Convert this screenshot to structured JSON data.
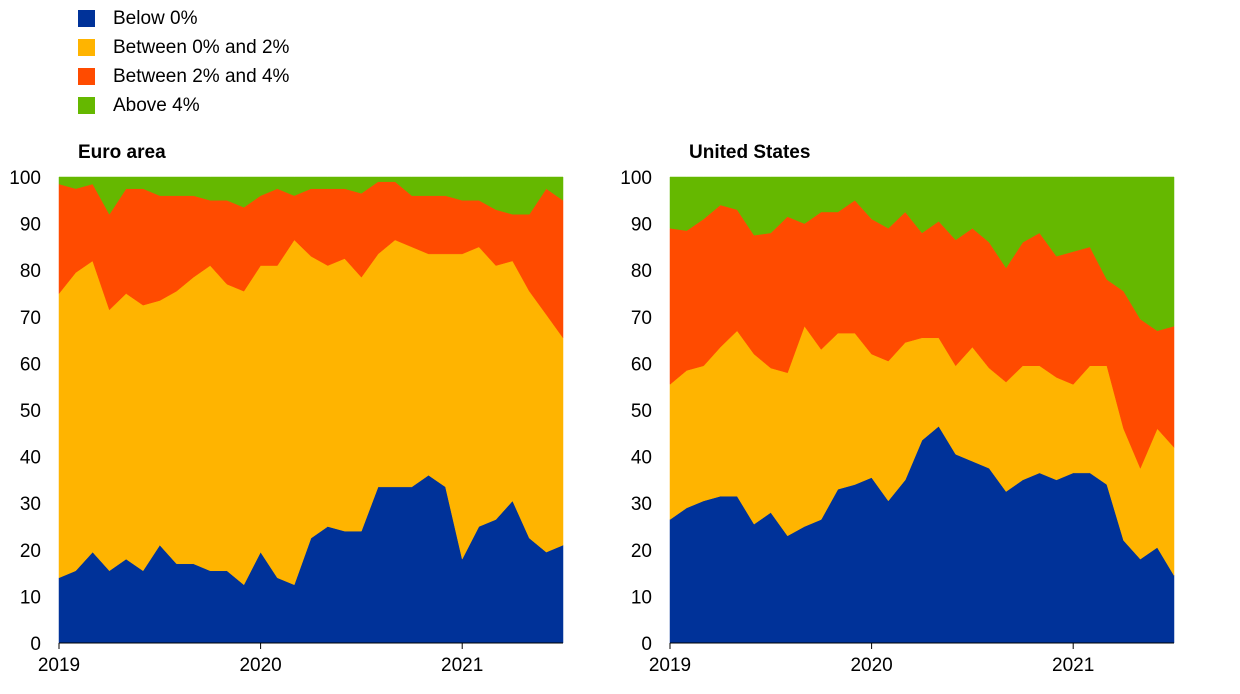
{
  "chart_data": [
    {
      "type": "area",
      "stacked": true,
      "title": "Euro area",
      "xlabel": "",
      "ylabel": "",
      "ylim": [
        0,
        100
      ],
      "yticks": [
        0,
        10,
        20,
        30,
        40,
        50,
        60,
        70,
        80,
        90,
        100
      ],
      "xlim": [
        2019,
        2021.5
      ],
      "xticks": [
        2019,
        2020,
        2021
      ],
      "x": [
        2019.0,
        2019.083,
        2019.167,
        2019.25,
        2019.333,
        2019.417,
        2019.5,
        2019.583,
        2019.667,
        2019.75,
        2019.833,
        2019.917,
        2020.0,
        2020.083,
        2020.167,
        2020.25,
        2020.333,
        2020.417,
        2020.5,
        2020.583,
        2020.667,
        2020.75,
        2020.833,
        2020.917,
        2021.0,
        2021.083,
        2021.167,
        2021.25,
        2021.333,
        2021.417,
        2021.5
      ],
      "series": [
        {
          "name": "Below 0%",
          "values": [
            14,
            15.5,
            19.5,
            15.5,
            18,
            15.5,
            21,
            17,
            17,
            15.5,
            15.5,
            12.5,
            19.5,
            14,
            12.5,
            22.5,
            25,
            24,
            24,
            33.5,
            33.5,
            33.5,
            36,
            33.5,
            18,
            25,
            26.5,
            30.5,
            22.5,
            19.5,
            21
          ]
        },
        {
          "name": "Between 0% and 2%",
          "values": [
            61,
            64,
            62.5,
            56,
            57,
            57,
            52.5,
            58.5,
            61.5,
            65.5,
            61.5,
            63,
            61.5,
            67,
            74,
            60.5,
            56,
            58.5,
            54.5,
            50,
            53,
            51.5,
            47.5,
            50,
            65.5,
            60,
            54.5,
            51.5,
            53,
            51,
            44.5
          ]
        },
        {
          "name": "Between 2% and 4%",
          "values": [
            23.5,
            18,
            16.5,
            20.5,
            22.5,
            25,
            22.5,
            20.5,
            17.5,
            14,
            18,
            18,
            15,
            16.5,
            9.5,
            14.5,
            16.5,
            15,
            18,
            15.5,
            12.5,
            11,
            12.5,
            12.5,
            11.5,
            10,
            12,
            10,
            16.5,
            27,
            29.5
          ]
        },
        {
          "name": "Above 4%",
          "values": [
            1.5,
            2.5,
            1.5,
            8,
            2.5,
            2.5,
            4,
            4,
            4,
            5,
            5,
            6.5,
            4,
            2.5,
            4,
            2.5,
            2.5,
            2.5,
            3.5,
            1,
            1,
            4,
            4,
            4,
            5,
            5,
            7,
            8,
            8,
            2.5,
            5
          ]
        }
      ]
    },
    {
      "type": "area",
      "stacked": true,
      "title": "United States",
      "xlabel": "",
      "ylabel": "",
      "ylim": [
        0,
        100
      ],
      "yticks": [
        0,
        10,
        20,
        30,
        40,
        50,
        60,
        70,
        80,
        90,
        100
      ],
      "xlim": [
        2019,
        2021.5
      ],
      "xticks": [
        2019,
        2020,
        2021
      ],
      "x": [
        2019.0,
        2019.083,
        2019.167,
        2019.25,
        2019.333,
        2019.417,
        2019.5,
        2019.583,
        2019.667,
        2019.75,
        2019.833,
        2019.917,
        2020.0,
        2020.083,
        2020.167,
        2020.25,
        2020.333,
        2020.417,
        2020.5,
        2020.583,
        2020.667,
        2020.75,
        2020.833,
        2020.917,
        2021.0,
        2021.083,
        2021.167,
        2021.25,
        2021.333,
        2021.417,
        2021.5
      ],
      "series": [
        {
          "name": "Below 0%",
          "values": [
            26.5,
            29,
            30.5,
            31.5,
            31.5,
            25.5,
            28,
            23,
            25,
            26.5,
            33,
            34,
            35.5,
            30.5,
            35,
            43.5,
            46.5,
            40.5,
            39,
            37.5,
            32.5,
            35,
            36.5,
            35,
            36.5,
            36.5,
            34,
            22,
            18,
            20.5,
            14.5
          ]
        },
        {
          "name": "Between 0% and 2%",
          "values": [
            29,
            29.5,
            29,
            32,
            35.5,
            36.5,
            31,
            35,
            43,
            36.5,
            33.5,
            32.5,
            26.5,
            30,
            29.5,
            22,
            19,
            19,
            24.5,
            21.5,
            23.5,
            24.5,
            23,
            22,
            19,
            23,
            25.5,
            24,
            19.5,
            25.5,
            27.5
          ]
        },
        {
          "name": "Between 2% and 4%",
          "values": [
            33.5,
            30,
            31.5,
            30.5,
            26,
            25.5,
            29,
            33.5,
            22,
            29.5,
            26,
            28.5,
            29,
            28.5,
            28,
            22.5,
            25,
            27,
            25.5,
            27,
            24.5,
            26.5,
            28.5,
            26,
            28.5,
            25.5,
            18.5,
            29.5,
            32,
            21,
            26
          ]
        },
        {
          "name": "Above 4%",
          "values": [
            11,
            11.5,
            9,
            6,
            7,
            12.5,
            12,
            8.5,
            10,
            7.5,
            7.5,
            5,
            9,
            11,
            7.5,
            12,
            9.5,
            13.5,
            11,
            14,
            19.5,
            14,
            12,
            17,
            16,
            15,
            22,
            24.5,
            30.5,
            33,
            32
          ]
        }
      ]
    }
  ],
  "colors": [
    "#003299",
    "#ffb400",
    "#ff4b00",
    "#65b800"
  ],
  "legend": {
    "placement": "top-left",
    "items": [
      {
        "label": "Below 0%",
        "color": "#003299"
      },
      {
        "label": "Between 0% and 2%",
        "color": "#ffb400"
      },
      {
        "label": "Between 2% and 4%",
        "color": "#ff4b00"
      },
      {
        "label": "Above 4%",
        "color": "#65b800"
      }
    ]
  }
}
